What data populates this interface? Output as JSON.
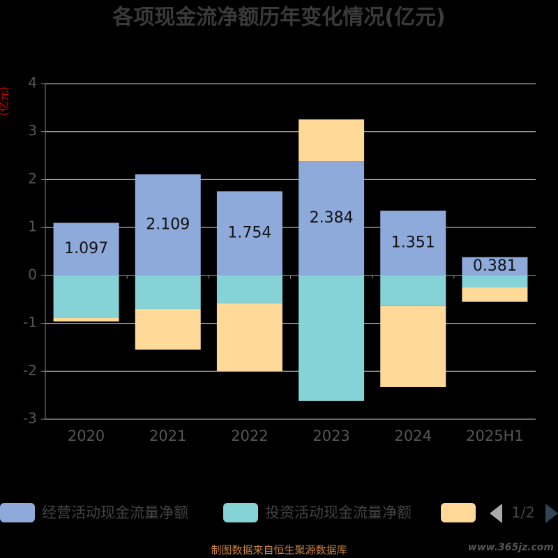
{
  "chart_data": {
    "type": "bar",
    "stacked": true,
    "title": "各项现金流净额历年变化情况(亿元)",
    "y_label": "(亿元)",
    "categories": [
      "2020",
      "2021",
      "2022",
      "2023",
      "2024",
      "2025H1"
    ],
    "series": [
      {
        "name": "经营活动现金流量净额",
        "color": "#8eaadb",
        "values": [
          1.097,
          2.109,
          1.754,
          2.384,
          1.351,
          0.381
        ],
        "show_labels": true
      },
      {
        "name": "投资活动现金流量净额",
        "color": "#86d3d7",
        "values": [
          -0.88,
          -0.7,
          -0.58,
          -2.62,
          -0.64,
          -0.25
        ]
      },
      {
        "color": "#fed998",
        "values": [
          -0.08,
          -0.85,
          -1.42,
          0.87,
          -1.69,
          -0.3
        ]
      }
    ],
    "ylim": [
      -3,
      4
    ],
    "yticks": [
      -3,
      -2,
      -1,
      0,
      1,
      2,
      3,
      4
    ],
    "grid": true,
    "legend_page": "1/2",
    "source": "制图数据来自恒生聚源数据库",
    "watermark": "www.365jz.com"
  }
}
